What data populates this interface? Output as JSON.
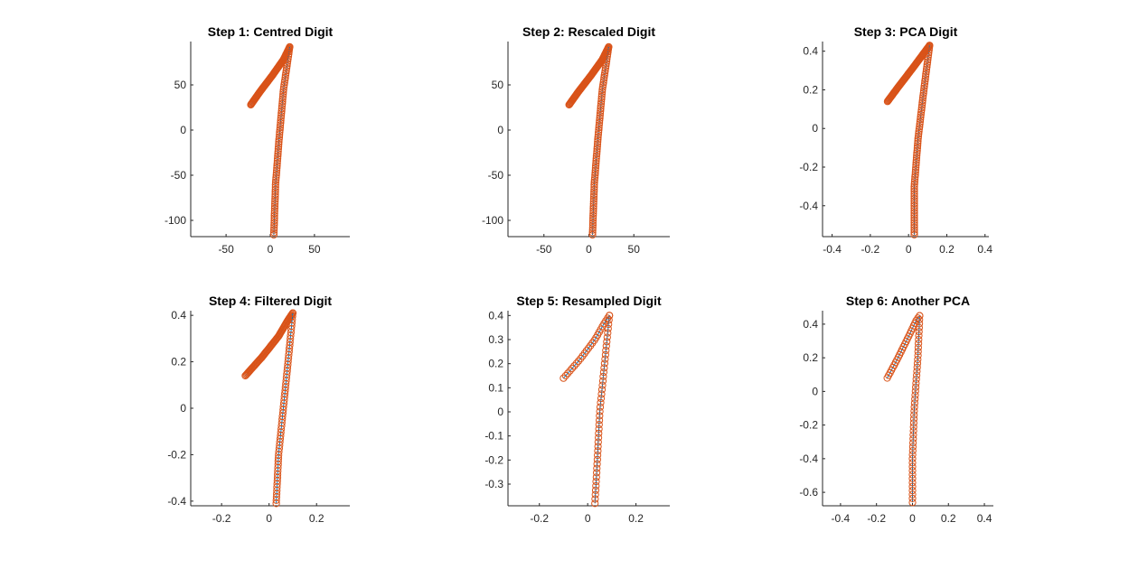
{
  "figure": {
    "colors": {
      "line": "#0072BD",
      "marker": "#D95319",
      "axis": "#262626"
    }
  },
  "chart_data": [
    {
      "type": "scatter",
      "title": "Step 1: Centred   Digit",
      "xlim": [
        -90,
        90
      ],
      "ylim": [
        -118,
        98
      ],
      "xticks": [
        -50,
        0,
        50
      ],
      "xtick_labels": [
        "-50",
        "0",
        "50"
      ],
      "yticks": [
        50,
        0,
        -50,
        -100
      ],
      "ytick_labels": [
        "50",
        "0",
        "-50",
        "-100"
      ],
      "grid": false,
      "legend": "none",
      "strokes": [
        [
          [
            -22,
            28
          ],
          [
            -12,
            42
          ],
          [
            2,
            60
          ],
          [
            15,
            78
          ],
          [
            22,
            92
          ]
        ],
        [
          [
            22,
            92
          ],
          [
            15,
            45
          ],
          [
            10,
            -10
          ],
          [
            6,
            -60
          ],
          [
            4,
            -116
          ]
        ]
      ],
      "marker_counts": [
        80,
        80
      ]
    },
    {
      "type": "scatter",
      "title": "Step 2: Rescaled  Digit",
      "xlim": [
        -90,
        90
      ],
      "ylim": [
        -118,
        98
      ],
      "xticks": [
        -50,
        0,
        50
      ],
      "xtick_labels": [
        "-50",
        "0",
        "50"
      ],
      "yticks": [
        50,
        0,
        -50,
        -100
      ],
      "ytick_labels": [
        "50",
        "0",
        "-50",
        "-100"
      ],
      "grid": false,
      "legend": "none",
      "strokes": [
        [
          [
            -22,
            28
          ],
          [
            -12,
            42
          ],
          [
            2,
            60
          ],
          [
            15,
            78
          ],
          [
            22,
            92
          ]
        ],
        [
          [
            22,
            92
          ],
          [
            15,
            45
          ],
          [
            10,
            -10
          ],
          [
            6,
            -60
          ],
          [
            4,
            -116
          ]
        ]
      ],
      "marker_counts": [
        80,
        80
      ]
    },
    {
      "type": "scatter",
      "title": "Step 3: PCA  Digit",
      "xlim": [
        -0.45,
        0.42
      ],
      "ylim": [
        -0.56,
        0.45
      ],
      "xticks": [
        -0.4,
        -0.2,
        0,
        0.2,
        0.4
      ],
      "xtick_labels": [
        "-0.4",
        "-0.2",
        "0",
        "0.2",
        "0.4"
      ],
      "yticks": [
        0.4,
        0.2,
        0,
        -0.2,
        -0.4
      ],
      "ytick_labels": [
        "0.4",
        "0.2",
        "0",
        "-0.2",
        "-0.4"
      ],
      "grid": false,
      "legend": "none",
      "strokes": [
        [
          [
            -0.11,
            0.14
          ],
          [
            -0.05,
            0.22
          ],
          [
            0.02,
            0.31
          ],
          [
            0.08,
            0.39
          ],
          [
            0.11,
            0.43
          ]
        ],
        [
          [
            0.11,
            0.43
          ],
          [
            0.08,
            0.2
          ],
          [
            0.05,
            -0.05
          ],
          [
            0.03,
            -0.3
          ],
          [
            0.03,
            -0.55
          ]
        ]
      ],
      "marker_counts": [
        80,
        80
      ]
    },
    {
      "type": "scatter",
      "title": "Step 4: Filtered  Digit",
      "xlim": [
        -0.33,
        0.34
      ],
      "ylim": [
        -0.42,
        0.42
      ],
      "xticks": [
        -0.2,
        0,
        0.2
      ],
      "xtick_labels": [
        "-0.2",
        "0",
        "0.2"
      ],
      "yticks": [
        0.4,
        0.2,
        0,
        -0.2,
        -0.4
      ],
      "ytick_labels": [
        "0.4",
        "0.2",
        "0",
        "-0.2",
        "-0.4"
      ],
      "grid": false,
      "legend": "none",
      "strokes": [
        [
          [
            -0.1,
            0.14
          ],
          [
            -0.03,
            0.22
          ],
          [
            0.04,
            0.31
          ],
          [
            0.08,
            0.38
          ],
          [
            0.1,
            0.41
          ]
        ],
        [
          [
            0.1,
            0.41
          ],
          [
            0.08,
            0.2
          ],
          [
            0.06,
            0.0
          ],
          [
            0.04,
            -0.2
          ],
          [
            0.03,
            -0.41
          ]
        ]
      ],
      "marker_counts": [
        70,
        60
      ]
    },
    {
      "type": "scatter",
      "title": "Step 5: Resampled Digit",
      "xlim": [
        -0.33,
        0.34
      ],
      "ylim": [
        -0.39,
        0.42
      ],
      "xticks": [
        -0.2,
        0,
        0.2
      ],
      "xtick_labels": [
        "-0.2",
        "0",
        "0.2"
      ],
      "yticks": [
        0.4,
        0.3,
        0.2,
        0.1,
        0,
        -0.1,
        -0.2,
        -0.3
      ],
      "ytick_labels": [
        "0.4",
        "0.3",
        "0.2",
        "0.1",
        "0",
        "-0.1",
        "-0.2",
        "-0.3"
      ],
      "grid": false,
      "legend": "none",
      "strokes": [
        [
          [
            -0.1,
            0.14
          ],
          [
            -0.03,
            0.22
          ],
          [
            0.03,
            0.3
          ],
          [
            0.07,
            0.37
          ],
          [
            0.09,
            0.4
          ]
        ],
        [
          [
            0.09,
            0.4
          ],
          [
            0.07,
            0.2
          ],
          [
            0.05,
            0.0
          ],
          [
            0.04,
            -0.2
          ],
          [
            0.03,
            -0.38
          ]
        ]
      ],
      "marker_counts": [
        25,
        44
      ]
    },
    {
      "type": "scatter",
      "title": "Step 6: Another PCA",
      "xlim": [
        -0.5,
        0.45
      ],
      "ylim": [
        -0.68,
        0.48
      ],
      "xticks": [
        -0.4,
        -0.2,
        0,
        0.2,
        0.4
      ],
      "xtick_labels": [
        "-0.4",
        "-0.2",
        "0",
        "0.2",
        "0.4"
      ],
      "yticks": [
        0.4,
        0.2,
        0,
        -0.2,
        -0.4,
        -0.6
      ],
      "ytick_labels": [
        "0.4",
        "0.2",
        "0",
        "-0.2",
        "-0.4",
        "-0.6"
      ],
      "grid": false,
      "legend": "none",
      "strokes": [
        [
          [
            -0.14,
            0.08
          ],
          [
            -0.08,
            0.2
          ],
          [
            -0.02,
            0.33
          ],
          [
            0.02,
            0.42
          ],
          [
            0.04,
            0.45
          ]
        ],
        [
          [
            0.04,
            0.45
          ],
          [
            0.03,
            0.2
          ],
          [
            0.01,
            -0.1
          ],
          [
            0.0,
            -0.4
          ],
          [
            0.0,
            -0.66
          ]
        ]
      ],
      "marker_counts": [
        25,
        48
      ]
    }
  ]
}
